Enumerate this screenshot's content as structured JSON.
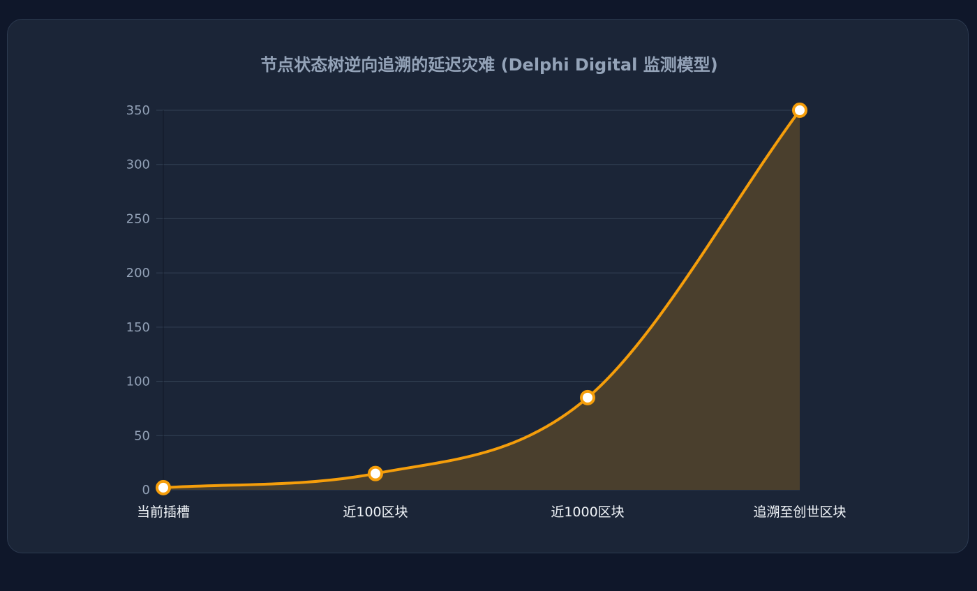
{
  "chart_data": {
    "type": "area",
    "title": "节点状态树逆向追溯的延迟灾难 (Delphi Digital 监测模型)",
    "xlabel": "",
    "ylabel": "",
    "categories": [
      "当前插槽",
      "近100区块",
      "近1000区块",
      "追溯至创世区块"
    ],
    "series": [
      {
        "values": [
          2,
          15,
          85,
          350
        ]
      }
    ],
    "ylim": [
      0,
      350
    ],
    "yticks": [
      0,
      50,
      100,
      150,
      200,
      250,
      300,
      350
    ],
    "grid": true,
    "legend": "none"
  },
  "colors": {
    "line": "#f59e0b",
    "fill": "#4a3f2d",
    "point_fill": "#ffffff",
    "grid": "#334155",
    "background": "#1b2537"
  }
}
